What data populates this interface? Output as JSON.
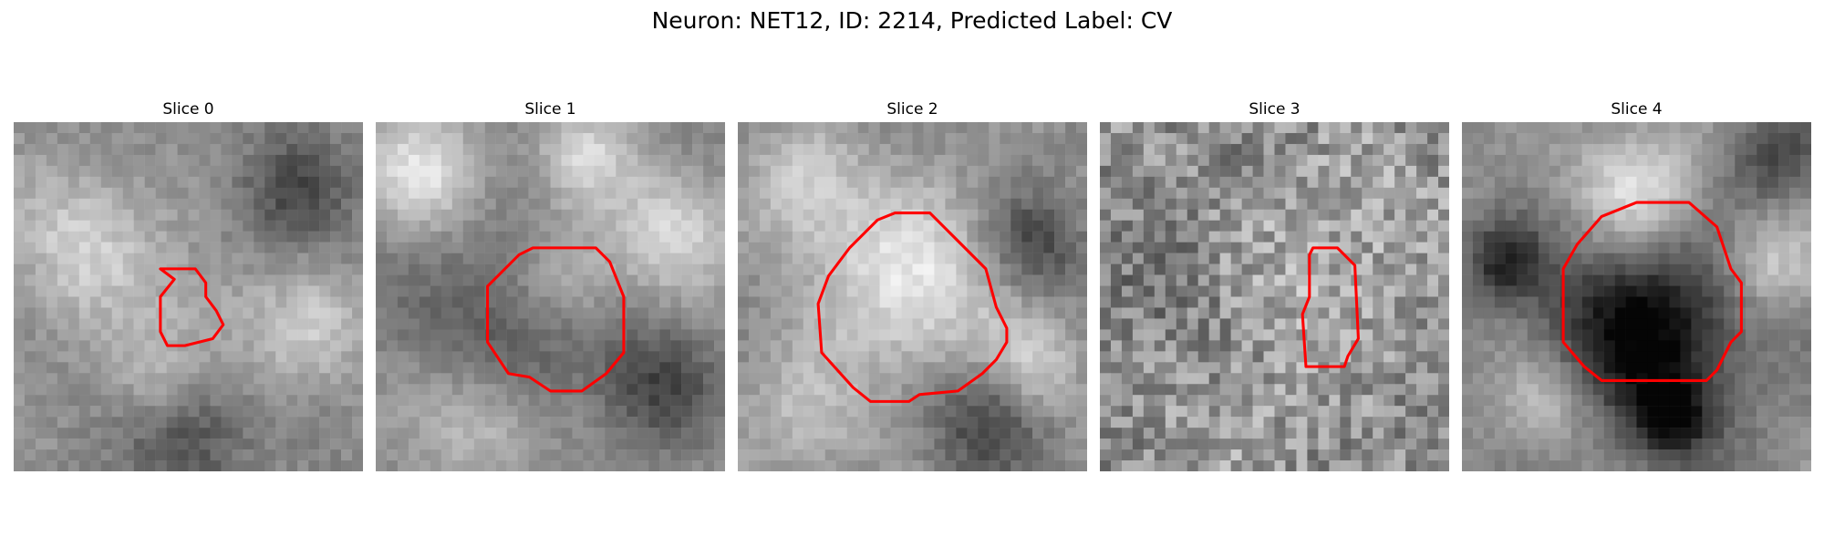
{
  "figure": {
    "title": "Neuron: NET12, ID: 2214, Predicted Label: CV"
  },
  "panels": [
    {
      "title": "Slice 0",
      "seed": 11,
      "contrast": 0.75,
      "noise": 0.06,
      "blobs": [
        [
          0.2,
          0.35,
          0.15,
          0.8
        ],
        [
          0.55,
          0.55,
          0.12,
          0.4
        ],
        [
          0.8,
          0.2,
          0.12,
          -0.7
        ],
        [
          0.5,
          0.9,
          0.12,
          -0.8
        ],
        [
          0.85,
          0.6,
          0.12,
          0.6
        ],
        [
          0.4,
          0.75,
          0.1,
          0.5
        ]
      ],
      "contour_color": "#ff0000",
      "contour": [
        [
          0.42,
          0.42
        ],
        [
          0.52,
          0.42
        ],
        [
          0.55,
          0.46
        ],
        [
          0.55,
          0.5
        ],
        [
          0.58,
          0.54
        ],
        [
          0.6,
          0.58
        ],
        [
          0.57,
          0.62
        ],
        [
          0.49,
          0.64
        ],
        [
          0.44,
          0.64
        ],
        [
          0.42,
          0.6
        ],
        [
          0.42,
          0.5
        ],
        [
          0.46,
          0.45
        ]
      ]
    },
    {
      "title": "Slice 1",
      "seed": 23,
      "contrast": 0.95,
      "noise": 0.05,
      "blobs": [
        [
          0.55,
          0.45,
          0.12,
          0.7
        ],
        [
          0.4,
          0.55,
          0.2,
          -0.6
        ],
        [
          0.15,
          0.15,
          0.12,
          0.8
        ],
        [
          0.85,
          0.3,
          0.12,
          0.7
        ],
        [
          0.3,
          0.85,
          0.12,
          0.6
        ],
        [
          0.8,
          0.75,
          0.12,
          -0.6
        ],
        [
          0.6,
          0.1,
          0.1,
          0.6
        ]
      ],
      "contour_color": "#ff0000",
      "contour": [
        [
          0.45,
          0.36
        ],
        [
          0.63,
          0.36
        ],
        [
          0.67,
          0.4
        ],
        [
          0.71,
          0.5
        ],
        [
          0.71,
          0.66
        ],
        [
          0.66,
          0.72
        ],
        [
          0.59,
          0.77
        ],
        [
          0.5,
          0.77
        ],
        [
          0.44,
          0.73
        ],
        [
          0.38,
          0.72
        ],
        [
          0.32,
          0.63
        ],
        [
          0.32,
          0.47
        ],
        [
          0.36,
          0.43
        ],
        [
          0.41,
          0.38
        ]
      ]
    },
    {
      "title": "Slice 2",
      "seed": 37,
      "contrast": 0.9,
      "noise": 0.06,
      "blobs": [
        [
          0.5,
          0.47,
          0.18,
          0.9
        ],
        [
          0.2,
          0.2,
          0.12,
          0.7
        ],
        [
          0.85,
          0.35,
          0.1,
          -0.7
        ],
        [
          0.7,
          0.85,
          0.12,
          -0.7
        ],
        [
          0.2,
          0.85,
          0.12,
          0.5
        ],
        [
          0.85,
          0.7,
          0.1,
          0.6
        ]
      ],
      "contour_color": "#ff0000",
      "contour": [
        [
          0.45,
          0.26
        ],
        [
          0.55,
          0.26
        ],
        [
          0.62,
          0.33
        ],
        [
          0.71,
          0.42
        ],
        [
          0.74,
          0.53
        ],
        [
          0.77,
          0.59
        ],
        [
          0.77,
          0.63
        ],
        [
          0.74,
          0.68
        ],
        [
          0.7,
          0.72
        ],
        [
          0.63,
          0.77
        ],
        [
          0.52,
          0.78
        ],
        [
          0.49,
          0.8
        ],
        [
          0.38,
          0.8
        ],
        [
          0.33,
          0.76
        ],
        [
          0.24,
          0.66
        ],
        [
          0.23,
          0.52
        ],
        [
          0.26,
          0.44
        ],
        [
          0.32,
          0.36
        ],
        [
          0.4,
          0.28
        ]
      ]
    },
    {
      "title": "Slice 3",
      "seed": 41,
      "contrast": 0.55,
      "noise": 0.18,
      "blobs": [
        [
          0.6,
          0.45,
          0.18,
          0.5
        ],
        [
          0.2,
          0.5,
          0.15,
          -0.3
        ],
        [
          0.8,
          0.2,
          0.15,
          0.3
        ],
        [
          0.4,
          0.85,
          0.15,
          0.3
        ]
      ],
      "contour_color": "#ff0000",
      "contour": [
        [
          0.61,
          0.36
        ],
        [
          0.68,
          0.36
        ],
        [
          0.73,
          0.41
        ],
        [
          0.74,
          0.62
        ],
        [
          0.71,
          0.67
        ],
        [
          0.7,
          0.7
        ],
        [
          0.59,
          0.7
        ],
        [
          0.58,
          0.55
        ],
        [
          0.6,
          0.5
        ],
        [
          0.6,
          0.38
        ]
      ]
    },
    {
      "title": "Slice 4",
      "seed": 53,
      "contrast": 1.0,
      "noise": 0.05,
      "blobs": [
        [
          0.52,
          0.6,
          0.2,
          -1.2
        ],
        [
          0.5,
          0.2,
          0.13,
          0.8
        ],
        [
          0.88,
          0.4,
          0.1,
          0.6
        ],
        [
          0.12,
          0.4,
          0.08,
          -0.8
        ],
        [
          0.6,
          0.85,
          0.08,
          -0.9
        ],
        [
          0.9,
          0.1,
          0.1,
          -0.6
        ],
        [
          0.25,
          0.8,
          0.1,
          0.6
        ]
      ],
      "contour_color": "#ff0000",
      "contour": [
        [
          0.5,
          0.23
        ],
        [
          0.65,
          0.23
        ],
        [
          0.73,
          0.3
        ],
        [
          0.77,
          0.42
        ],
        [
          0.8,
          0.46
        ],
        [
          0.8,
          0.6
        ],
        [
          0.77,
          0.63
        ],
        [
          0.73,
          0.71
        ],
        [
          0.7,
          0.74
        ],
        [
          0.4,
          0.74
        ],
        [
          0.35,
          0.7
        ],
        [
          0.29,
          0.63
        ],
        [
          0.29,
          0.42
        ],
        [
          0.33,
          0.35
        ],
        [
          0.4,
          0.27
        ]
      ]
    }
  ]
}
